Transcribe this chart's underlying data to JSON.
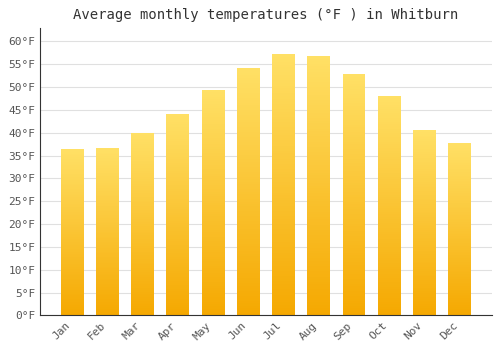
{
  "title": "Average monthly temperatures (°F ) in Whitburn",
  "months": [
    "Jan",
    "Feb",
    "Mar",
    "Apr",
    "May",
    "Jun",
    "Jul",
    "Aug",
    "Sep",
    "Oct",
    "Nov",
    "Dec"
  ],
  "values": [
    36.5,
    36.7,
    39.9,
    44.0,
    49.3,
    54.2,
    57.2,
    56.8,
    52.8,
    48.1,
    40.6,
    37.8
  ],
  "ylim": [
    0,
    63
  ],
  "yticks": [
    0,
    5,
    10,
    15,
    20,
    25,
    30,
    35,
    40,
    45,
    50,
    55,
    60
  ],
  "background_color": "#ffffff",
  "plot_bg_color": "#ffffff",
  "grid_color": "#e0e0e0",
  "bar_color_bottom": "#F5A800",
  "bar_color_top": "#FFE066",
  "title_fontsize": 10,
  "tick_fontsize": 8,
  "bar_width": 0.65
}
